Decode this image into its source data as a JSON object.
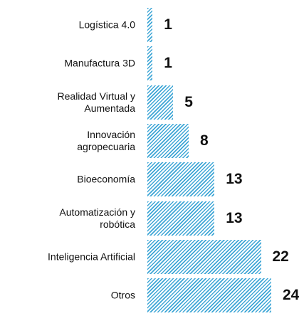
{
  "chart_data": {
    "type": "bar",
    "orientation": "horizontal",
    "categories": [
      "Logística 4.0",
      "Manufactura 3D",
      "Realidad Virtual y\nAumentada",
      "Innovación\nagropecuaria",
      "Bioeconomía",
      "Automatización y\nrobótica",
      "Inteligencia Artificial",
      "Otros"
    ],
    "values": [
      1,
      1,
      5,
      8,
      13,
      13,
      22,
      24
    ],
    "color": "#3ea6d6"
  }
}
